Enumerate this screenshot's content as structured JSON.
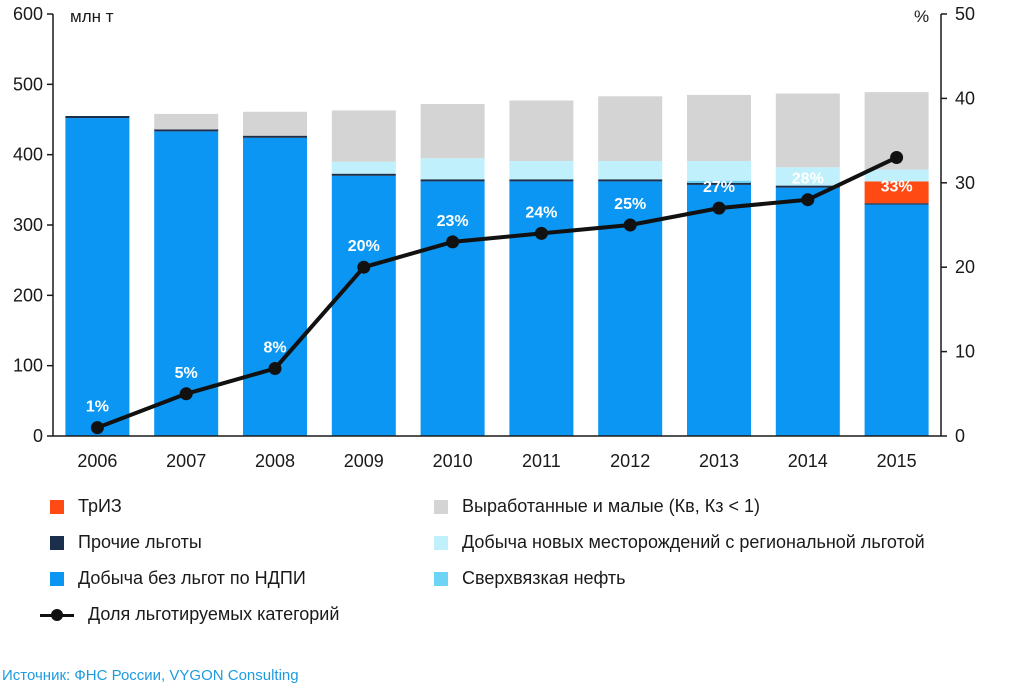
{
  "chart_data": {
    "type": "bar",
    "stacked": true,
    "categories": [
      "2006",
      "2007",
      "2008",
      "2009",
      "2010",
      "2011",
      "2012",
      "2013",
      "2014",
      "2015"
    ],
    "y_unit_label": "млн т",
    "y2_unit_label": "%",
    "ylim": [
      0,
      600
    ],
    "y2lim": [
      0,
      50
    ],
    "y_ticks": [
      "0",
      "100",
      "200",
      "300",
      "400",
      "500",
      "600"
    ],
    "y2_ticks": [
      "0",
      "10",
      "20",
      "30",
      "40",
      "50"
    ],
    "grid": false,
    "series": [
      {
        "name": "Добыча без льгот по НДПИ",
        "color": "#0a96f2",
        "values": [
          452,
          433,
          424,
          370,
          362,
          362,
          362,
          357,
          353,
          329
        ]
      },
      {
        "name": "Прочие льготы",
        "color": "#1b2f4d",
        "values": [
          3,
          3,
          3,
          3,
          3,
          3,
          3,
          3,
          3,
          2
        ]
      },
      {
        "name": "ТрИЗ",
        "color": "#ff4a14",
        "values": [
          0,
          0,
          0,
          0,
          0,
          0,
          0,
          0,
          0,
          31
        ]
      },
      {
        "name": "Сверхвязкая нефть",
        "color": "#6ed4f6",
        "values": [
          0,
          0,
          0,
          0,
          0,
          0,
          0,
          3,
          0,
          0
        ]
      },
      {
        "name": "Добыча новых месторождений с региональной льготой",
        "color": "#bff0fb",
        "values": [
          0,
          0,
          0,
          17,
          30,
          26,
          26,
          28,
          26,
          17
        ]
      },
      {
        "name": "Выработанные и малые (Кв, Кз < 1)",
        "color": "#d4d4d4",
        "values": [
          0,
          22,
          34,
          73,
          77,
          86,
          92,
          94,
          105,
          110
        ]
      }
    ],
    "line": {
      "name": "Доля льготируемых категорий",
      "axis": "right",
      "color": "#111111",
      "values": [
        1,
        5,
        8,
        20,
        23,
        24,
        25,
        27,
        28,
        33
      ],
      "labels": [
        "1%",
        "5%",
        "8%",
        "20%",
        "23%",
        "24%",
        "25%",
        "27%",
        "28%",
        "33%"
      ]
    },
    "legend_position": "bottom"
  },
  "legend": [
    {
      "label": "ТрИЗ",
      "color": "#ff4a14",
      "kind": "box"
    },
    {
      "label": "Выработанные и малые (Кв, Кз < 1)",
      "color": "#d4d4d4",
      "kind": "box"
    },
    {
      "label": "Прочие льготы",
      "color": "#1b2f4d",
      "kind": "box"
    },
    {
      "label": "Добыча новых месторождений с региональной льготой",
      "color": "#bff0fb",
      "kind": "box"
    },
    {
      "label": "Добыча без льгот по НДПИ",
      "color": "#0a96f2",
      "kind": "box"
    },
    {
      "label": "Сверхвязкая нефть",
      "color": "#6ed4f6",
      "kind": "box"
    },
    {
      "label": "Доля льготируемых категорий",
      "color": "#111111",
      "kind": "line"
    }
  ],
  "source": "Источник: ФНС России, VYGON Consulting"
}
